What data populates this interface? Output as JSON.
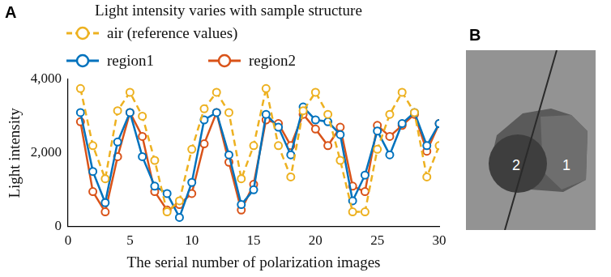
{
  "chart_data": {
    "type": "line",
    "panel_label": "A",
    "title": "Light intensity varies with sample structure",
    "x_label": "The serial number of polarization images",
    "y_label": "Light intensity",
    "x": [
      1,
      2,
      3,
      4,
      5,
      6,
      7,
      8,
      9,
      10,
      11,
      12,
      13,
      14,
      15,
      16,
      17,
      18,
      19,
      20,
      21,
      22,
      23,
      24,
      25,
      26,
      27,
      28,
      29,
      30
    ],
    "series": [
      {
        "name": "air (reference values)",
        "color": "#EDB120",
        "line_style": "dashed",
        "marker": "circle",
        "values": [
          3750,
          2200,
          1300,
          3150,
          3650,
          3000,
          1800,
          400,
          700,
          2100,
          3200,
          3650,
          3100,
          1300,
          2200,
          3750,
          2200,
          1350,
          3150,
          3650,
          3050,
          1800,
          400,
          400,
          2100,
          3050,
          3650,
          3100,
          1350,
          2200
        ]
      },
      {
        "name": "region1",
        "color": "#0072BD",
        "line_style": "solid",
        "marker": "circle",
        "values": [
          3100,
          1500,
          650,
          2300,
          3100,
          1900,
          1100,
          900,
          250,
          1200,
          2900,
          3100,
          1950,
          600,
          1000,
          3050,
          2700,
          1950,
          3250,
          2900,
          2850,
          2500,
          700,
          1400,
          2600,
          1950,
          2800,
          3100,
          2200,
          2800
        ]
      },
      {
        "name": "region2",
        "color": "#D95319",
        "line_style": "solid",
        "marker": "circle",
        "values": [
          2850,
          950,
          400,
          1900,
          3100,
          2450,
          950,
          450,
          600,
          900,
          2250,
          3100,
          1750,
          450,
          1150,
          2900,
          2800,
          2200,
          3050,
          2650,
          2200,
          2700,
          1100,
          950,
          2750,
          2450,
          2750,
          3050,
          2050,
          2800
        ]
      }
    ],
    "xlim": [
      0,
      30
    ],
    "xticks": [
      0,
      5,
      10,
      15,
      20,
      25,
      30
    ],
    "ylim": [
      0,
      4000
    ],
    "yticks": [
      0,
      2000,
      4000
    ],
    "grid": false,
    "legend": "top"
  },
  "image_panel": {
    "panel_label": "B",
    "region_labels": [
      "2",
      "1"
    ]
  }
}
